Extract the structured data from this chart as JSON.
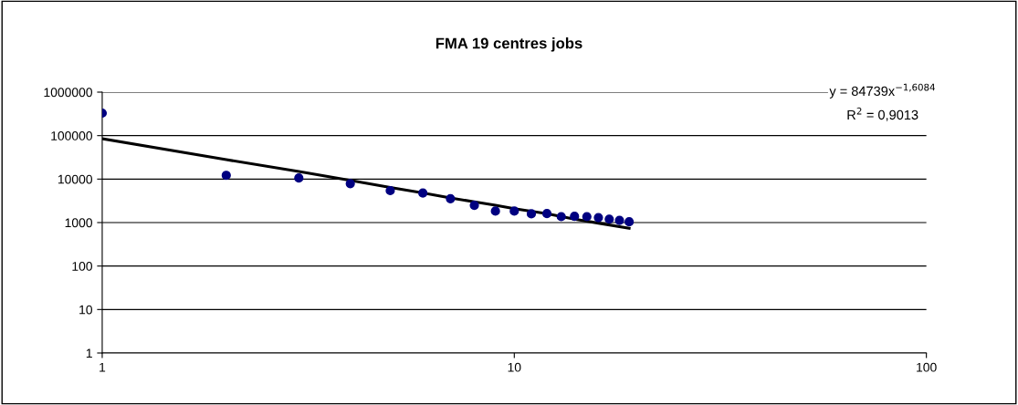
{
  "chart_data": {
    "type": "scatter",
    "title": "FMA 19 centres jobs",
    "log": "xy",
    "grid": "y",
    "marker": "circle",
    "xlim": [
      1,
      100
    ],
    "xticks": [
      1,
      10,
      100
    ],
    "ylim": [
      1,
      1000000
    ],
    "yticks": [
      1,
      10,
      100,
      1000,
      10000,
      100000,
      1000000
    ],
    "series": [
      {
        "color": "#000080",
        "x": [
          1,
          2,
          3,
          4,
          5,
          6,
          7,
          8,
          9,
          10,
          11,
          12,
          13,
          14,
          15,
          16,
          17,
          18,
          19
        ],
        "values": [
          329000,
          12200,
          10600,
          7850,
          5420,
          4760,
          3540,
          2490,
          1840,
          1840,
          1590,
          1610,
          1370,
          1390,
          1370,
          1300,
          1200,
          1120,
          1040
        ]
      },
      {
        "type": "line",
        "color": "#000000",
        "marker": "none",
        "line_style": "solid",
        "x": [
          1,
          2,
          3,
          4,
          5,
          6,
          7,
          8,
          9,
          10,
          12,
          14,
          16,
          19
        ],
        "values": [
          85000,
          28000,
          15000,
          9300,
          6400,
          4800,
          3700,
          3000,
          2500,
          2100,
          1600,
          1200,
          970,
          740
        ]
      }
    ],
    "annotations": [
      "y = 84739x$^{−1,6084}$",
      "R$^{2}$ = 0,9013"
    ]
  }
}
